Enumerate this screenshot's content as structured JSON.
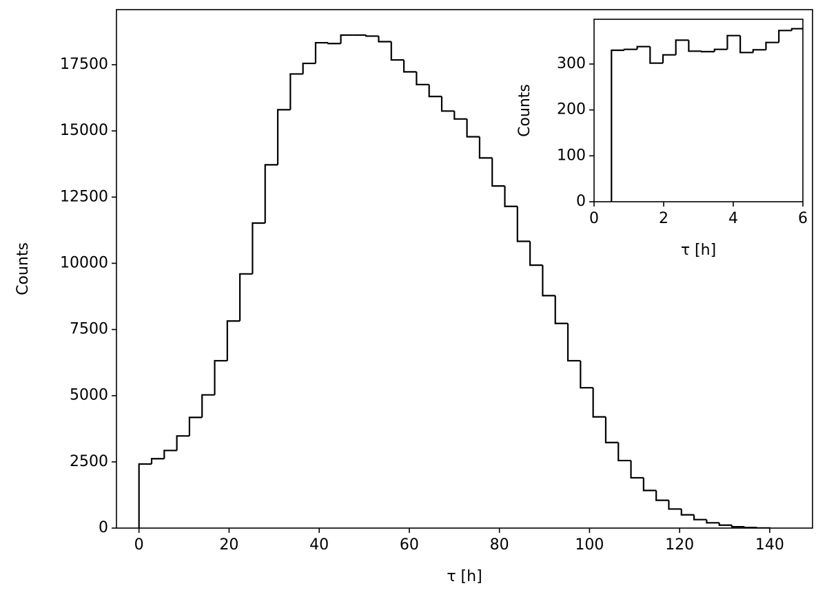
{
  "chart_data": [
    {
      "type": "histogram",
      "xlabel": "τ [h]",
      "ylabel": "Counts",
      "bins": [
        0,
        2.8,
        5.6,
        8.4,
        11.2,
        14,
        16.8,
        19.6,
        22.4,
        25.2,
        28,
        30.8,
        33.6,
        36.4,
        39.2,
        42,
        44.8,
        47.6,
        50.4,
        53.2,
        56,
        58.8,
        61.6,
        64.4,
        67.2,
        70,
        72.8,
        75.6,
        78.4,
        81.2,
        84,
        86.8,
        89.6,
        92.4,
        95.2,
        98,
        100.8,
        103.6,
        106.4,
        109.2,
        112,
        114.8,
        117.6,
        120.4,
        123.2,
        126,
        128.8,
        131.6,
        134.4,
        137.2,
        140
      ],
      "values": [
        2420,
        2620,
        2930,
        3480,
        4180,
        5030,
        6320,
        7820,
        9600,
        11520,
        13720,
        15800,
        17150,
        17550,
        18330,
        18300,
        18620,
        18620,
        18580,
        18370,
        17680,
        17230,
        16750,
        16300,
        15750,
        15450,
        14780,
        13980,
        12920,
        12150,
        10830,
        9930,
        8780,
        7730,
        6320,
        5300,
        4200,
        3230,
        2550,
        1900,
        1420,
        1050,
        720,
        500,
        320,
        200,
        110,
        50,
        20,
        5
      ],
      "color": "#000000",
      "xlim": [
        -5,
        149.5
      ],
      "ylim": [
        0,
        19580
      ],
      "xticks": [
        0,
        20,
        40,
        60,
        80,
        100,
        120,
        140
      ],
      "yticks": [
        0,
        2500,
        5000,
        7500,
        10000,
        12500,
        15000,
        17500
      ]
    },
    {
      "type": "histogram",
      "xlabel": "τ [h]",
      "ylabel": "Counts",
      "bins": [
        0.5,
        0.87,
        1.24,
        1.61,
        1.98,
        2.35,
        2.72,
        3.09,
        3.46,
        3.83,
        4.2,
        4.57,
        4.94,
        5.31,
        5.68,
        6.05
      ],
      "values": [
        330,
        332,
        338,
        302,
        320,
        352,
        328,
        327,
        332,
        362,
        325,
        331,
        347,
        373,
        377
      ],
      "color": "#000000",
      "xlim": [
        0,
        6
      ],
      "ylim": [
        0,
        397.5
      ],
      "xticks": [
        0,
        2,
        4,
        6
      ],
      "yticks": [
        0,
        100,
        200,
        300
      ]
    }
  ]
}
